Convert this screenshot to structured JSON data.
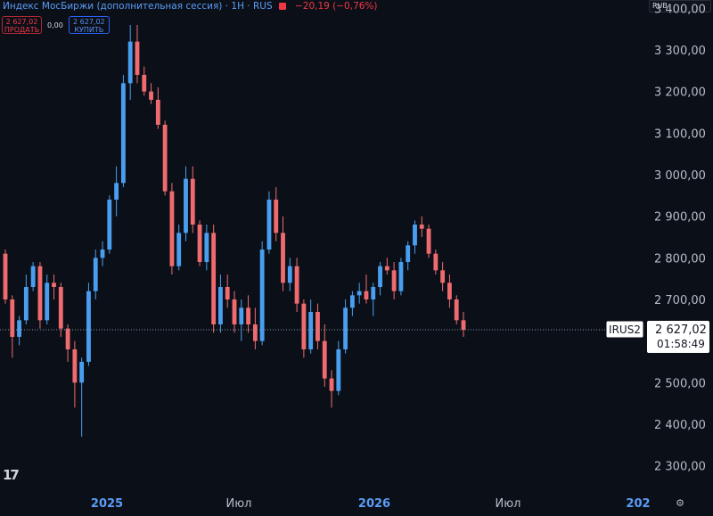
{
  "header": {
    "title": "Индекс МосБиржи (дополнительная сессия) · 1H · RUS",
    "change": "−20,19 (−0,76%)"
  },
  "trade": {
    "sell_price": "2 627,02",
    "sell_label": "ПРОДАТЬ",
    "spread": "0,00",
    "buy_price": "2 627,02",
    "buy_label": "КУПИТЬ"
  },
  "currency": "RUB",
  "last_price": {
    "symbol": "IRUS2",
    "value": "2 627,02",
    "countdown": "01:58:49"
  },
  "colors": {
    "up": "#4a9ef0",
    "down": "#ef6b70",
    "background": "#0b1018"
  },
  "icons": {
    "logo": "tradingview-logo-icon",
    "settings": "gear-icon"
  },
  "chart_data": {
    "type": "candlestick",
    "ylim": [
      2250,
      3420
    ],
    "y_ticks": [
      "2 300,00",
      "2 400,00",
      "2 500,00",
      "2 600,00",
      "2 700,00",
      "2 800,00",
      "2 900,00",
      "3 000,00",
      "3 100,00",
      "3 200,00",
      "3 300,00",
      "3 400,00"
    ],
    "y_tick_values": [
      2300,
      2400,
      2500,
      2600,
      2700,
      2800,
      2900,
      3000,
      3100,
      3200,
      3300,
      3400
    ],
    "x_ticks": [
      "2025",
      "Июл",
      "2026",
      "Июл",
      "202"
    ],
    "x_tick_kinds": [
      "year",
      "month",
      "year",
      "month",
      "year"
    ],
    "current_value": 2627.02,
    "candles": [
      [
        2810,
        2820,
        2690,
        2700
      ],
      [
        2700,
        2710,
        2560,
        2610
      ],
      [
        2610,
        2660,
        2590,
        2650
      ],
      [
        2650,
        2760,
        2640,
        2730
      ],
      [
        2730,
        2790,
        2720,
        2780
      ],
      [
        2780,
        2790,
        2630,
        2650
      ],
      [
        2650,
        2760,
        2640,
        2740
      ],
      [
        2740,
        2760,
        2700,
        2730
      ],
      [
        2730,
        2740,
        2610,
        2630
      ],
      [
        2630,
        2640,
        2550,
        2580
      ],
      [
        2580,
        2600,
        2440,
        2500
      ],
      [
        2500,
        2560,
        2370,
        2550
      ],
      [
        2550,
        2740,
        2540,
        2720
      ],
      [
        2720,
        2820,
        2700,
        2800
      ],
      [
        2800,
        2840,
        2780,
        2820
      ],
      [
        2820,
        2950,
        2810,
        2940
      ],
      [
        2940,
        3020,
        2900,
        2980
      ],
      [
        2980,
        3240,
        2970,
        3220
      ],
      [
        3220,
        3360,
        3180,
        3320
      ],
      [
        3320,
        3360,
        3220,
        3240
      ],
      [
        3240,
        3260,
        3190,
        3200
      ],
      [
        3200,
        3220,
        3170,
        3180
      ],
      [
        3180,
        3210,
        3110,
        3120
      ],
      [
        3120,
        3130,
        2950,
        2960
      ],
      [
        2960,
        2980,
        2760,
        2780
      ],
      [
        2780,
        2880,
        2770,
        2860
      ],
      [
        2860,
        3020,
        2840,
        2990
      ],
      [
        2990,
        3020,
        2860,
        2880
      ],
      [
        2880,
        2890,
        2780,
        2790
      ],
      [
        2790,
        2880,
        2770,
        2860
      ],
      [
        2860,
        2880,
        2620,
        2640
      ],
      [
        2640,
        2760,
        2620,
        2730
      ],
      [
        2730,
        2760,
        2680,
        2700
      ],
      [
        2700,
        2720,
        2620,
        2640
      ],
      [
        2640,
        2700,
        2600,
        2680
      ],
      [
        2680,
        2710,
        2620,
        2640
      ],
      [
        2640,
        2680,
        2580,
        2600
      ],
      [
        2600,
        2840,
        2590,
        2820
      ],
      [
        2820,
        2960,
        2810,
        2940
      ],
      [
        2940,
        2970,
        2840,
        2860
      ],
      [
        2860,
        2900,
        2720,
        2740
      ],
      [
        2740,
        2800,
        2720,
        2780
      ],
      [
        2780,
        2800,
        2670,
        2690
      ],
      [
        2690,
        2700,
        2560,
        2580
      ],
      [
        2580,
        2700,
        2570,
        2670
      ],
      [
        2670,
        2690,
        2580,
        2600
      ],
      [
        2600,
        2640,
        2490,
        2510
      ],
      [
        2510,
        2530,
        2440,
        2480
      ],
      [
        2480,
        2600,
        2470,
        2580
      ],
      [
        2580,
        2700,
        2570,
        2680
      ],
      [
        2680,
        2720,
        2660,
        2710
      ],
      [
        2710,
        2740,
        2690,
        2720
      ],
      [
        2720,
        2760,
        2690,
        2700
      ],
      [
        2700,
        2740,
        2660,
        2730
      ],
      [
        2730,
        2790,
        2710,
        2780
      ],
      [
        2780,
        2800,
        2760,
        2770
      ],
      [
        2770,
        2790,
        2700,
        2720
      ],
      [
        2720,
        2800,
        2710,
        2790
      ],
      [
        2790,
        2840,
        2770,
        2830
      ],
      [
        2830,
        2890,
        2810,
        2880
      ],
      [
        2880,
        2900,
        2850,
        2870
      ],
      [
        2870,
        2880,
        2800,
        2810
      ],
      [
        2810,
        2820,
        2760,
        2770
      ],
      [
        2770,
        2790,
        2720,
        2740
      ],
      [
        2740,
        2760,
        2680,
        2700
      ],
      [
        2700,
        2710,
        2640,
        2650
      ],
      [
        2650,
        2670,
        2610,
        2627.02
      ]
    ]
  }
}
